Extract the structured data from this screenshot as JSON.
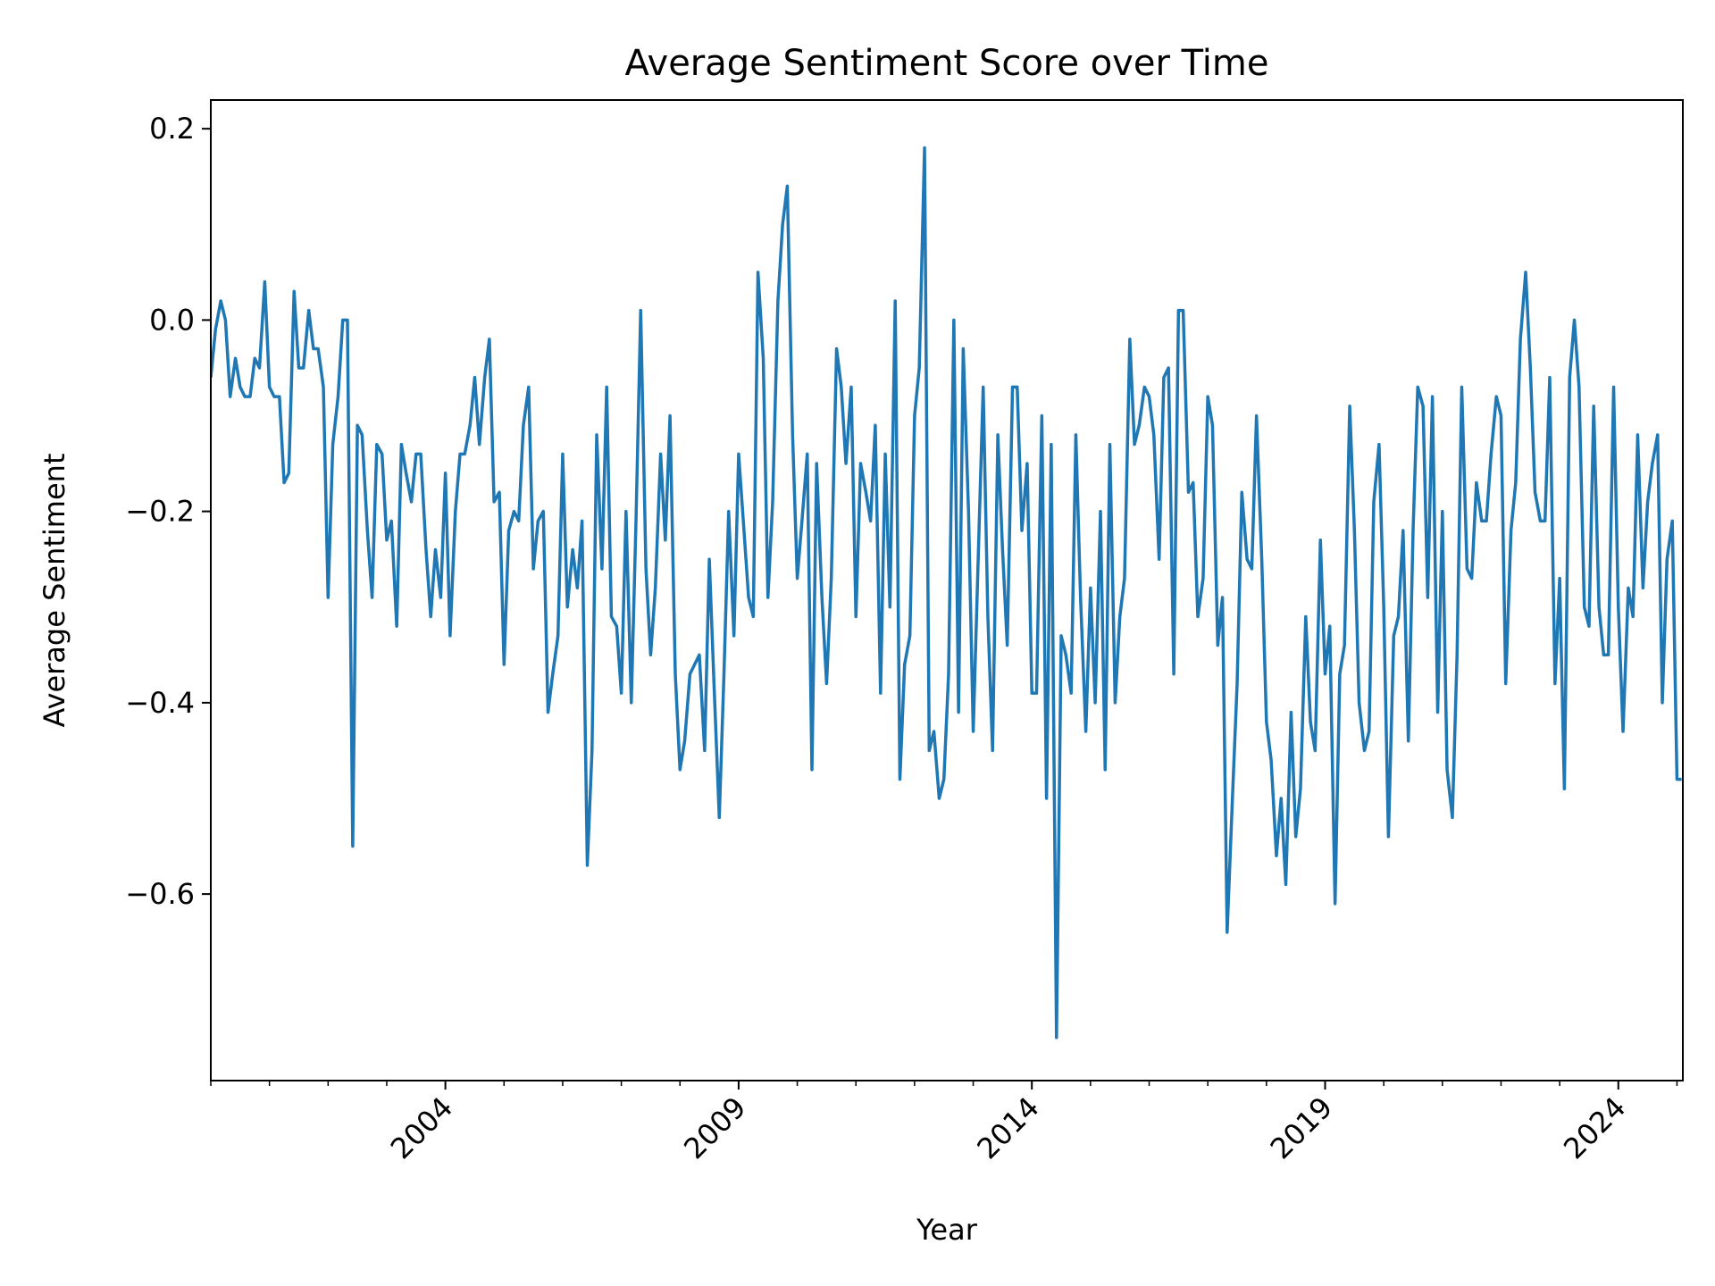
{
  "chart_data": {
    "type": "line",
    "title": "Average Sentiment Score over Time",
    "xlabel": "Year",
    "ylabel": "Average Sentiment",
    "xlim": [
      2000.0,
      2025.1
    ],
    "ylim": [
      -0.795,
      0.23
    ],
    "x_ticks": [
      2004,
      2009,
      2014,
      2019,
      2024
    ],
    "x_tick_labels": [
      "2004",
      "2009",
      "2014",
      "2019",
      "2024"
    ],
    "y_ticks": [
      0.2,
      0.0,
      -0.2,
      -0.4,
      -0.6
    ],
    "y_tick_labels": [
      "0.2",
      "0.0",
      "−0.2",
      "−0.4",
      "−0.6"
    ],
    "grid": false,
    "series": [
      {
        "color": "#1f77b4",
        "x": [
          2000.0,
          2000.08,
          2000.17,
          2000.25,
          2000.33,
          2000.42,
          2000.5,
          2000.58,
          2000.67,
          2000.75,
          2000.83,
          2000.92,
          2001.0,
          2001.08,
          2001.17,
          2001.25,
          2001.33,
          2001.42,
          2001.5,
          2001.58,
          2001.67,
          2001.75,
          2001.83,
          2001.92,
          2002.0,
          2002.08,
          2002.17,
          2002.25,
          2002.33,
          2002.42,
          2002.5,
          2002.58,
          2002.67,
          2002.75,
          2002.83,
          2002.92,
          2003.0,
          2003.08,
          2003.17,
          2003.25,
          2003.33,
          2003.42,
          2003.5,
          2003.58,
          2003.67,
          2003.75,
          2003.83,
          2003.92,
          2004.0,
          2004.08,
          2004.17,
          2004.25,
          2004.33,
          2004.42,
          2004.5,
          2004.58,
          2004.67,
          2004.75,
          2004.83,
          2004.92,
          2005.0,
          2005.08,
          2005.17,
          2005.25,
          2005.33,
          2005.42,
          2005.5,
          2005.58,
          2005.67,
          2005.75,
          2005.83,
          2005.92,
          2006.0,
          2006.08,
          2006.17,
          2006.25,
          2006.33,
          2006.42,
          2006.5,
          2006.58,
          2006.67,
          2006.75,
          2006.83,
          2006.92,
          2007.0,
          2007.08,
          2007.17,
          2007.25,
          2007.33,
          2007.42,
          2007.5,
          2007.58,
          2007.67,
          2007.75,
          2007.83,
          2007.92,
          2008.0,
          2008.08,
          2008.17,
          2008.25,
          2008.33,
          2008.42,
          2008.5,
          2008.58,
          2008.67,
          2008.75,
          2008.83,
          2008.92,
          2009.0,
          2009.08,
          2009.17,
          2009.25,
          2009.33,
          2009.42,
          2009.5,
          2009.58,
          2009.67,
          2009.75,
          2009.83,
          2009.92,
          2010.0,
          2010.08,
          2010.17,
          2010.25,
          2010.33,
          2010.42,
          2010.5,
          2010.58,
          2010.67,
          2010.75,
          2010.83,
          2010.92,
          2011.0,
          2011.08,
          2011.17,
          2011.25,
          2011.33,
          2011.42,
          2011.5,
          2011.58,
          2011.67,
          2011.75,
          2011.83,
          2011.92,
          2012.0,
          2012.08,
          2012.17,
          2012.25,
          2012.33,
          2012.42,
          2012.5,
          2012.58,
          2012.67,
          2012.75,
          2012.83,
          2012.92,
          2013.0,
          2013.08,
          2013.17,
          2013.25,
          2013.33,
          2013.42,
          2013.5,
          2013.58,
          2013.67,
          2013.75,
          2013.83,
          2013.92,
          2014.0,
          2014.08,
          2014.17,
          2014.25,
          2014.33,
          2014.42,
          2014.5,
          2014.58,
          2014.67,
          2014.75,
          2014.83,
          2014.92,
          2015.0,
          2015.08,
          2015.17,
          2015.25,
          2015.33,
          2015.42,
          2015.5,
          2015.58,
          2015.67,
          2015.75,
          2015.83,
          2015.92,
          2016.0,
          2016.08,
          2016.17,
          2016.25,
          2016.33,
          2016.42,
          2016.5,
          2016.58,
          2016.67,
          2016.75,
          2016.83,
          2016.92,
          2017.0,
          2017.08,
          2017.17,
          2017.25,
          2017.33,
          2017.42,
          2017.5,
          2017.58,
          2017.67,
          2017.75,
          2017.83,
          2017.92,
          2018.0,
          2018.08,
          2018.17,
          2018.25,
          2018.33,
          2018.42,
          2018.5,
          2018.58,
          2018.67,
          2018.75,
          2018.83,
          2018.92,
          2019.0,
          2019.08,
          2019.17,
          2019.25,
          2019.33,
          2019.42,
          2019.5,
          2019.58,
          2019.67,
          2019.75,
          2019.83,
          2019.92,
          2020.0,
          2020.08,
          2020.17,
          2020.25,
          2020.33,
          2020.42,
          2020.5,
          2020.58,
          2020.67,
          2020.75,
          2020.83,
          2020.92,
          2021.0,
          2021.08,
          2021.17,
          2021.25,
          2021.33,
          2021.42,
          2021.5,
          2021.58,
          2021.67,
          2021.75,
          2021.83,
          2021.92,
          2022.0,
          2022.08,
          2022.17,
          2022.25,
          2022.33,
          2022.42,
          2022.5,
          2022.58,
          2022.67,
          2022.75,
          2022.83,
          2022.92,
          2023.0,
          2023.08,
          2023.17,
          2023.25,
          2023.33,
          2023.42,
          2023.5,
          2023.58,
          2023.67,
          2023.75,
          2023.83,
          2023.92,
          2024.0,
          2024.08,
          2024.17,
          2024.25,
          2024.33,
          2024.42,
          2024.5,
          2024.58,
          2024.67,
          2024.75,
          2024.83,
          2024.92,
          2025.0,
          2025.08
        ],
        "values": [
          -0.06,
          -0.01,
          0.02,
          0.0,
          -0.08,
          -0.04,
          -0.07,
          -0.08,
          -0.08,
          -0.04,
          -0.05,
          0.04,
          -0.07,
          -0.08,
          -0.08,
          -0.17,
          -0.16,
          0.03,
          -0.05,
          -0.05,
          0.01,
          -0.03,
          -0.03,
          -0.07,
          -0.29,
          -0.13,
          -0.08,
          0.0,
          0.0,
          -0.55,
          -0.11,
          -0.12,
          -0.22,
          -0.29,
          -0.13,
          -0.14,
          -0.23,
          -0.21,
          -0.32,
          -0.13,
          -0.16,
          -0.19,
          -0.14,
          -0.14,
          -0.24,
          -0.31,
          -0.24,
          -0.29,
          -0.16,
          -0.33,
          -0.2,
          -0.14,
          -0.14,
          -0.11,
          -0.06,
          -0.13,
          -0.06,
          -0.02,
          -0.19,
          -0.18,
          -0.36,
          -0.22,
          -0.2,
          -0.21,
          -0.11,
          -0.07,
          -0.26,
          -0.21,
          -0.2,
          -0.41,
          -0.37,
          -0.33,
          -0.14,
          -0.3,
          -0.24,
          -0.28,
          -0.21,
          -0.57,
          -0.45,
          -0.12,
          -0.26,
          -0.07,
          -0.31,
          -0.32,
          -0.39,
          -0.2,
          -0.4,
          -0.21,
          0.01,
          -0.26,
          -0.35,
          -0.28,
          -0.14,
          -0.23,
          -0.1,
          -0.37,
          -0.47,
          -0.44,
          -0.37,
          -0.36,
          -0.35,
          -0.45,
          -0.25,
          -0.38,
          -0.52,
          -0.37,
          -0.2,
          -0.33,
          -0.14,
          -0.21,
          -0.29,
          -0.31,
          0.05,
          -0.04,
          -0.29,
          -0.19,
          0.02,
          0.1,
          0.14,
          -0.12,
          -0.27,
          -0.21,
          -0.14,
          -0.47,
          -0.15,
          -0.29,
          -0.38,
          -0.27,
          -0.03,
          -0.07,
          -0.15,
          -0.07,
          -0.31,
          -0.15,
          -0.18,
          -0.21,
          -0.11,
          -0.39,
          -0.14,
          -0.3,
          0.02,
          -0.48,
          -0.36,
          -0.33,
          -0.1,
          -0.05,
          0.18,
          -0.45,
          -0.43,
          -0.5,
          -0.48,
          -0.37,
          0.0,
          -0.41,
          -0.03,
          -0.2,
          -0.43,
          -0.26,
          -0.07,
          -0.31,
          -0.45,
          -0.12,
          -0.24,
          -0.34,
          -0.07,
          -0.07,
          -0.22,
          -0.15,
          -0.39,
          -0.39,
          -0.1,
          -0.5,
          -0.13,
          -0.75,
          -0.33,
          -0.35,
          -0.39,
          -0.12,
          -0.29,
          -0.43,
          -0.28,
          -0.4,
          -0.2,
          -0.47,
          -0.13,
          -0.4,
          -0.31,
          -0.27,
          -0.02,
          -0.13,
          -0.11,
          -0.07,
          -0.08,
          -0.12,
          -0.25,
          -0.06,
          -0.05,
          -0.37,
          0.01,
          0.01,
          -0.18,
          -0.17,
          -0.31,
          -0.27,
          -0.08,
          -0.11,
          -0.34,
          -0.29,
          -0.64,
          -0.5,
          -0.38,
          -0.18,
          -0.25,
          -0.26,
          -0.1,
          -0.25,
          -0.42,
          -0.46,
          -0.56,
          -0.5,
          -0.59,
          -0.41,
          -0.54,
          -0.49,
          -0.31,
          -0.42,
          -0.45,
          -0.23,
          -0.37,
          -0.32,
          -0.61,
          -0.37,
          -0.34,
          -0.09,
          -0.22,
          -0.4,
          -0.45,
          -0.43,
          -0.19,
          -0.13,
          -0.3,
          -0.54,
          -0.33,
          -0.31,
          -0.22,
          -0.44,
          -0.22,
          -0.07,
          -0.09,
          -0.29,
          -0.08,
          -0.41,
          -0.2,
          -0.47,
          -0.52,
          -0.35,
          -0.07,
          -0.26,
          -0.27,
          -0.17,
          -0.21,
          -0.21,
          -0.14,
          -0.08,
          -0.1,
          -0.38,
          -0.22,
          -0.17,
          -0.02,
          0.05,
          -0.05,
          -0.18,
          -0.21,
          -0.21,
          -0.06,
          -0.38,
          -0.27,
          -0.49,
          -0.06,
          0.0,
          -0.07,
          -0.3,
          -0.32,
          -0.09,
          -0.3,
          -0.35,
          -0.35,
          -0.07,
          -0.3,
          -0.43,
          -0.28,
          -0.31,
          -0.12,
          -0.28,
          -0.19,
          -0.15,
          -0.12,
          -0.4,
          -0.25,
          -0.21,
          -0.48,
          -0.48
        ]
      }
    ]
  }
}
